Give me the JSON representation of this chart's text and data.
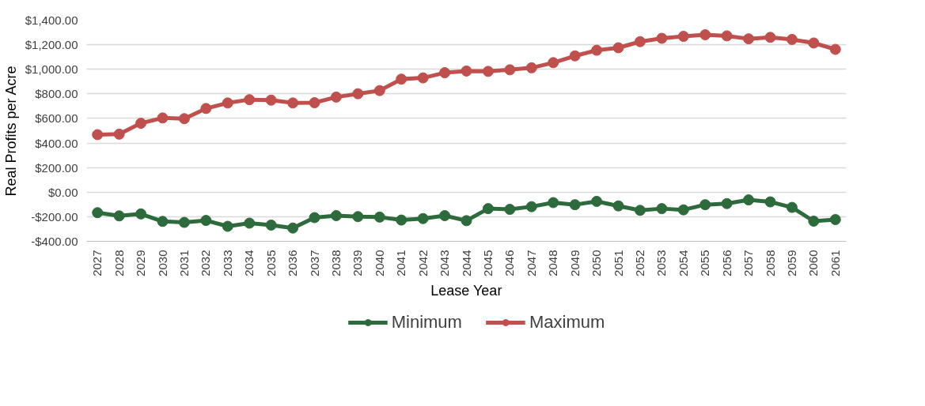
{
  "chart_data": {
    "type": "line",
    "xlabel": "Lease Year",
    "ylabel": "Real Profits per Acre",
    "categories": [
      "2027",
      "2028",
      "2029",
      "2030",
      "2031",
      "2032",
      "2033",
      "2034",
      "2035",
      "2036",
      "2037",
      "2038",
      "2039",
      "2040",
      "2041",
      "2042",
      "2043",
      "2044",
      "2045",
      "2046",
      "2047",
      "2048",
      "2049",
      "2050",
      "2051",
      "2052",
      "2053",
      "2054",
      "2055",
      "2056",
      "2057",
      "2058",
      "2059",
      "2060",
      "2061"
    ],
    "series": [
      {
        "name": "Minimum",
        "color": "#2e6b3c",
        "values": [
          -167,
          -193,
          -177,
          -238,
          -246,
          -230,
          -278,
          -252,
          -268,
          -292,
          -207,
          -191,
          -199,
          -203,
          -227,
          -215,
          -191,
          -232,
          -134,
          -140,
          -118,
          -85,
          -102,
          -75,
          -112,
          -148,
          -134,
          -144,
          -102,
          -93,
          -63,
          -79,
          -124,
          -236,
          -223
        ]
      },
      {
        "name": "Maximum",
        "color": "#c0504d",
        "values": [
          468,
          472,
          561,
          604,
          598,
          681,
          726,
          753,
          749,
          726,
          728,
          774,
          801,
          827,
          920,
          930,
          972,
          986,
          983,
          996,
          1012,
          1054,
          1109,
          1155,
          1175,
          1225,
          1252,
          1268,
          1281,
          1272,
          1248,
          1260,
          1243,
          1214,
          1162
        ]
      }
    ],
    "ylim": [
      -400,
      1400
    ],
    "yticks": [
      {
        "value": -400,
        "label": "-$400.00"
      },
      {
        "value": -200,
        "label": "-$200.00"
      },
      {
        "value": 0,
        "label": "$0.00"
      },
      {
        "value": 200,
        "label": "$200.00"
      },
      {
        "value": 400,
        "label": "$400.00"
      },
      {
        "value": 600,
        "label": "$600.00"
      },
      {
        "value": 800,
        "label": "$800.00"
      },
      {
        "value": 1000,
        "label": "$1,000.00"
      },
      {
        "value": 1200,
        "label": "$1,200.00"
      },
      {
        "value": 1400,
        "label": "$1,400.00"
      }
    ],
    "grid": "y",
    "legend": "bottom",
    "marker": "circle",
    "line_style": "solid"
  }
}
